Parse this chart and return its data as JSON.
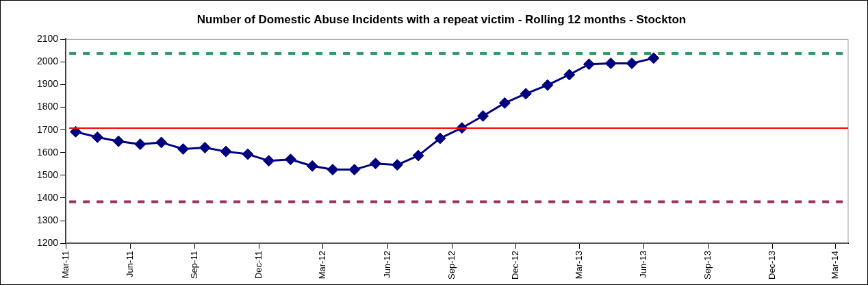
{
  "chart_data": {
    "type": "line",
    "title": "Number of Domestic Abuse Incidents with a repeat victim - Rolling 12 months - Stockton",
    "x": [
      "2011-03-15",
      "2011-04-15",
      "2011-05-15",
      "2011-06-15",
      "2011-07-15",
      "2011-08-15",
      "2011-09-15",
      "2011-10-15",
      "2011-11-15",
      "2011-12-15",
      "2012-01-15",
      "2012-02-15",
      "2012-03-15",
      "2012-04-15",
      "2012-05-15",
      "2012-06-15",
      "2012-07-15",
      "2012-08-15",
      "2012-09-15",
      "2012-10-15",
      "2012-11-15",
      "2012-12-15",
      "2013-01-15",
      "2013-02-15",
      "2013-03-15",
      "2013-04-15",
      "2013-05-15",
      "2013-06-15"
    ],
    "series": [
      {
        "color": "#000080",
        "values": [
          1692,
          1668,
          1650,
          1637,
          1645,
          1616,
          1622,
          1605,
          1593,
          1564,
          1570,
          1541,
          1525,
          1525,
          1552,
          1546,
          1587,
          1663,
          1709,
          1762,
          1819,
          1860,
          1898,
          1944,
          1990,
          1994,
          1994,
          2017
        ]
      }
    ],
    "marker": "diamond",
    "line_style": "solid",
    "grid": false,
    "legend": false,
    "ylim": [
      1200,
      2100
    ],
    "yticks": [
      1200,
      1300,
      1400,
      1500,
      1600,
      1700,
      1800,
      1900,
      2000,
      2100
    ],
    "xlim": [
      "2011-03",
      "2014-03-19"
    ],
    "xticks": [
      {
        "value": "2011-03",
        "label": "Mar-11"
      },
      {
        "value": "2011-06",
        "label": "Jun-11"
      },
      {
        "value": "2011-09",
        "label": "Sep-11"
      },
      {
        "value": "2011-12",
        "label": "Dec-11"
      },
      {
        "value": "2012-03",
        "label": "Mar-12"
      },
      {
        "value": "2012-06",
        "label": "Jun-12"
      },
      {
        "value": "2012-09",
        "label": "Sep-12"
      },
      {
        "value": "2012-12",
        "label": "Dec-12"
      },
      {
        "value": "2013-03",
        "label": "Mar-13"
      },
      {
        "value": "2013-06",
        "label": "Jun-13"
      },
      {
        "value": "2013-09",
        "label": "Sep-13"
      },
      {
        "value": "2013-12",
        "label": "Dec-13"
      },
      {
        "value": "2014-03",
        "label": "Mar-14"
      }
    ],
    "ref_lines": [
      {
        "axis": "y",
        "value": 2038,
        "color": "#339966",
        "line_style": "dashed"
      },
      {
        "axis": "y",
        "value": 1708,
        "color": "#ff0000",
        "line_style": "solid"
      },
      {
        "axis": "y",
        "value": 1383,
        "color": "#993366",
        "line_style": "dashed"
      }
    ]
  }
}
